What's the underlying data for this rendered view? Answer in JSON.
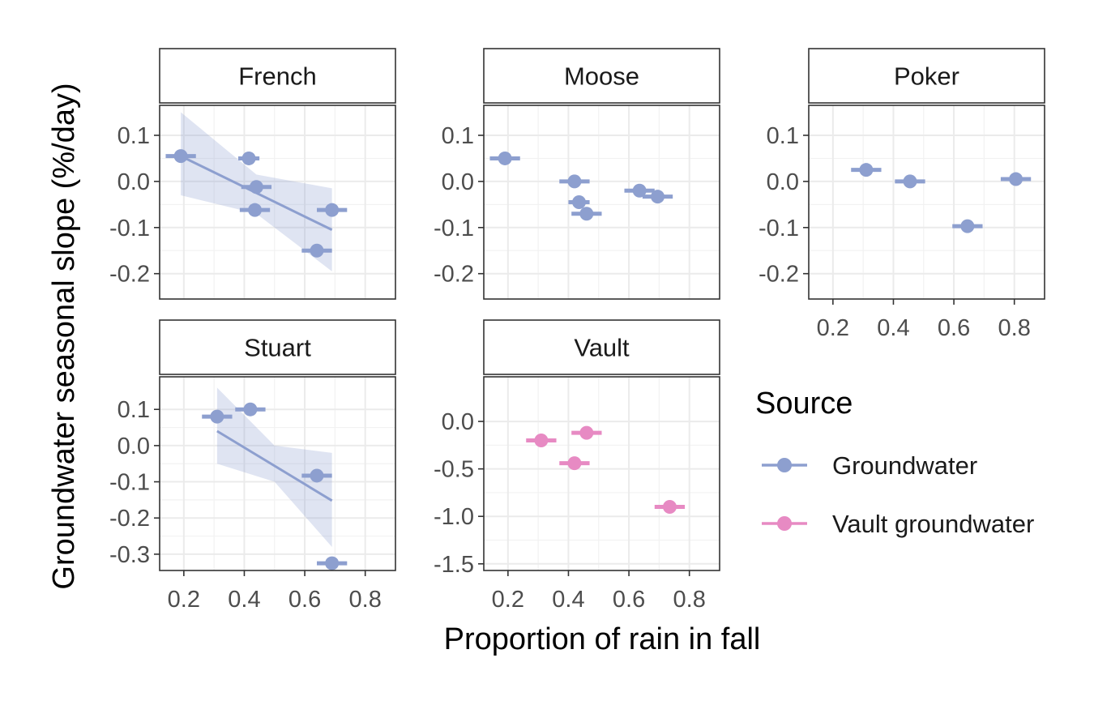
{
  "chart_data": {
    "type": "scatter",
    "xlabel": "Proportion of rain in fall",
    "ylabel": "Groundwater seasonal slope (%/day)",
    "legend": {
      "title": "Source",
      "placement": "right",
      "entries": [
        {
          "label": "Groundwater",
          "color": "#8d9fcf"
        },
        {
          "label": "Vault groundwater",
          "color": "#e78ac3"
        }
      ]
    },
    "x_ticks": [
      "0.2",
      "0.4",
      "0.6",
      "0.8"
    ],
    "x_tick_values": [
      0.2,
      0.4,
      0.6,
      0.8
    ],
    "xlim": [
      0.12,
      0.9
    ],
    "grid": true,
    "panels": [
      {
        "name": "French",
        "source": "Groundwater",
        "ylim": [
          -0.255,
          0.165
        ],
        "y_ticks": [
          "0.1",
          "0.0",
          "-0.1",
          "-0.2"
        ],
        "y_tick_values": [
          0.1,
          0.0,
          -0.1,
          -0.2
        ],
        "points": [
          {
            "x": 0.19,
            "y": 0.055,
            "xerr": 0.05
          },
          {
            "x": 0.415,
            "y": 0.05,
            "xerr": 0.035
          },
          {
            "x": 0.44,
            "y": -0.012,
            "xerr": 0.05
          },
          {
            "x": 0.435,
            "y": -0.062,
            "xerr": 0.05
          },
          {
            "x": 0.69,
            "y": -0.062,
            "xerr": 0.05
          },
          {
            "x": 0.64,
            "y": -0.15,
            "xerr": 0.05
          }
        ],
        "fit": {
          "x": [
            0.19,
            0.69
          ],
          "y": [
            0.055,
            -0.105
          ],
          "band_x": [
            0.19,
            0.44,
            0.69
          ],
          "band_lo": [
            -0.03,
            -0.07,
            -0.195
          ],
          "band_hi": [
            0.15,
            0.015,
            -0.015
          ]
        }
      },
      {
        "name": "Moose",
        "source": "Groundwater",
        "ylim": [
          -0.255,
          0.165
        ],
        "y_ticks": [
          "0.1",
          "0.0",
          "-0.1",
          "-0.2"
        ],
        "y_tick_values": [
          0.1,
          0.0,
          -0.1,
          -0.2
        ],
        "points": [
          {
            "x": 0.19,
            "y": 0.05,
            "xerr": 0.05
          },
          {
            "x": 0.42,
            "y": 0.0,
            "xerr": 0.05
          },
          {
            "x": 0.435,
            "y": -0.045,
            "xerr": 0.035
          },
          {
            "x": 0.46,
            "y": -0.07,
            "xerr": 0.05
          },
          {
            "x": 0.635,
            "y": -0.02,
            "xerr": 0.05
          },
          {
            "x": 0.695,
            "y": -0.033,
            "xerr": 0.05
          }
        ]
      },
      {
        "name": "Poker",
        "source": "Groundwater",
        "ylim": [
          -0.255,
          0.165
        ],
        "y_ticks": [
          "0.1",
          "0.0",
          "-0.1",
          "-0.2"
        ],
        "y_tick_values": [
          0.1,
          0.0,
          -0.1,
          -0.2
        ],
        "show_x_axis": true,
        "points": [
          {
            "x": 0.31,
            "y": 0.025,
            "xerr": 0.05
          },
          {
            "x": 0.455,
            "y": 0.0,
            "xerr": 0.05
          },
          {
            "x": 0.645,
            "y": -0.097,
            "xerr": 0.05
          },
          {
            "x": 0.805,
            "y": 0.005,
            "xerr": 0.05
          }
        ]
      },
      {
        "name": "Stuart",
        "source": "Groundwater",
        "ylim": [
          -0.345,
          0.19
        ],
        "y_ticks": [
          "0.1",
          "0.0",
          "-0.1",
          "-0.2",
          "-0.3"
        ],
        "y_tick_values": [
          0.1,
          0.0,
          -0.1,
          -0.2,
          -0.3
        ],
        "show_x_axis": true,
        "points": [
          {
            "x": 0.31,
            "y": 0.08,
            "xerr": 0.05
          },
          {
            "x": 0.42,
            "y": 0.1,
            "xerr": 0.05
          },
          {
            "x": 0.64,
            "y": -0.083,
            "xerr": 0.05
          },
          {
            "x": 0.69,
            "y": -0.325,
            "xerr": 0.05
          }
        ],
        "fit": {
          "x": [
            0.31,
            0.69
          ],
          "y": [
            0.04,
            -0.152
          ],
          "band_x": [
            0.31,
            0.5,
            0.69
          ],
          "band_lo": [
            -0.05,
            -0.1,
            -0.28
          ],
          "band_hi": [
            0.16,
            0.0,
            -0.02
          ]
        }
      },
      {
        "name": "Vault",
        "source": "Vault groundwater",
        "ylim": [
          -1.57,
          0.47
        ],
        "y_ticks": [
          "0.0",
          "-0.5",
          "-1.0",
          "-1.5"
        ],
        "y_tick_values": [
          0.0,
          -0.5,
          -1.0,
          -1.5
        ],
        "show_x_axis": true,
        "points": [
          {
            "x": 0.31,
            "y": -0.2,
            "xerr": 0.05
          },
          {
            "x": 0.46,
            "y": -0.12,
            "xerr": 0.05
          },
          {
            "x": 0.42,
            "y": -0.44,
            "xerr": 0.05
          },
          {
            "x": 0.735,
            "y": -0.9,
            "xerr": 0.05
          }
        ]
      }
    ]
  }
}
